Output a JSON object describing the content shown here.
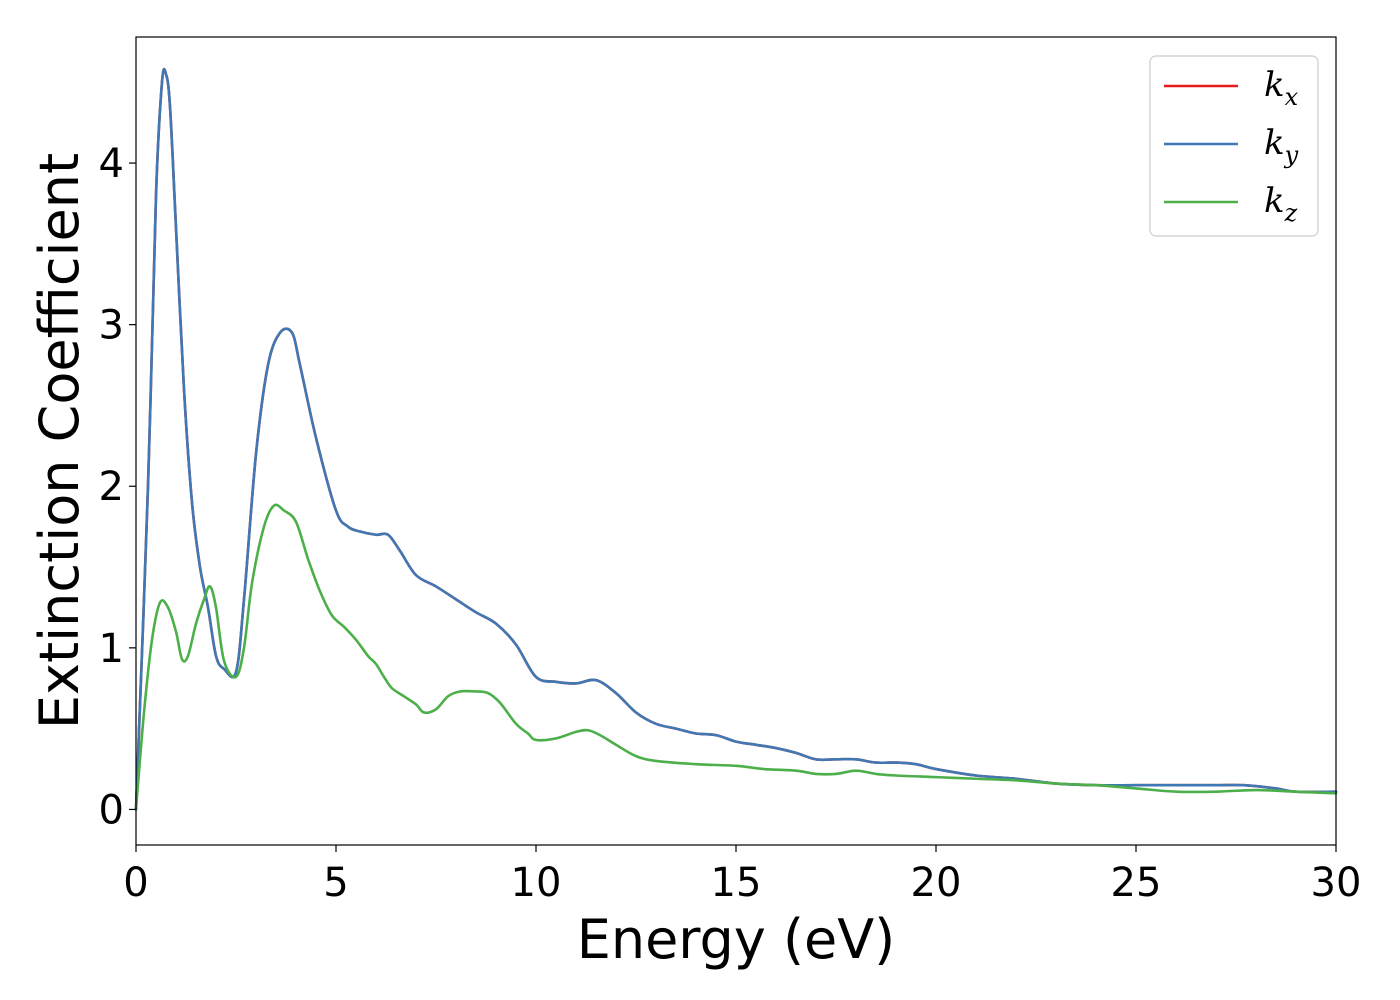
{
  "chart_data": {
    "type": "line",
    "xlabel": "Energy (eV)",
    "ylabel": "Extinction Coefficient",
    "xlim": [
      0,
      30
    ],
    "ylim": [
      -0.22,
      4.78
    ],
    "xticks": [
      0,
      5,
      10,
      15,
      20,
      25,
      30
    ],
    "yticks": [
      0,
      1,
      2,
      3,
      4
    ],
    "grid": false,
    "legend_position": "top-right",
    "series": [
      {
        "name": "k_x",
        "label_main": "k",
        "label_sub": "x",
        "color": "#e41a1c",
        "x": [
          0,
          0.3,
          0.5,
          0.65,
          0.75,
          0.85,
          1.0,
          1.2,
          1.4,
          1.6,
          1.8,
          2.0,
          2.2,
          2.5,
          2.7,
          3.0,
          3.3,
          3.6,
          3.9,
          4.1,
          4.5,
          5.0,
          5.3,
          5.6,
          6.0,
          6.3,
          6.6,
          7.0,
          7.5,
          8.0,
          8.5,
          9.0,
          9.5,
          10.0,
          10.5,
          11.0,
          11.5,
          12.0,
          12.5,
          13.0,
          13.5,
          14.0,
          14.5,
          15.0,
          15.5,
          16.0,
          16.5,
          17.0,
          17.5,
          18.0,
          18.5,
          19.0,
          19.5,
          20.0,
          21.0,
          22.0,
          23.0,
          24.0,
          25.0,
          26.0,
          27.0,
          27.7,
          28.5,
          29.0,
          30.0
        ],
        "y": [
          0.0,
          2.0,
          3.8,
          4.5,
          4.55,
          4.35,
          3.6,
          2.6,
          1.9,
          1.5,
          1.25,
          0.95,
          0.87,
          0.85,
          1.3,
          2.2,
          2.75,
          2.95,
          2.95,
          2.75,
          2.3,
          1.85,
          1.75,
          1.72,
          1.7,
          1.7,
          1.6,
          1.45,
          1.38,
          1.3,
          1.22,
          1.15,
          1.02,
          0.82,
          0.79,
          0.78,
          0.8,
          0.72,
          0.6,
          0.53,
          0.5,
          0.47,
          0.46,
          0.42,
          0.4,
          0.38,
          0.35,
          0.31,
          0.31,
          0.31,
          0.29,
          0.29,
          0.28,
          0.25,
          0.21,
          0.19,
          0.16,
          0.15,
          0.15,
          0.15,
          0.15,
          0.15,
          0.13,
          0.11,
          0.11
        ]
      },
      {
        "name": "k_y",
        "label_main": "k",
        "label_sub": "y",
        "color": "#3f78b4",
        "x": [
          0,
          0.3,
          0.5,
          0.65,
          0.75,
          0.85,
          1.0,
          1.2,
          1.4,
          1.6,
          1.8,
          2.0,
          2.2,
          2.5,
          2.7,
          3.0,
          3.3,
          3.6,
          3.9,
          4.1,
          4.5,
          5.0,
          5.3,
          5.6,
          6.0,
          6.3,
          6.6,
          7.0,
          7.5,
          8.0,
          8.5,
          9.0,
          9.5,
          10.0,
          10.5,
          11.0,
          11.5,
          12.0,
          12.5,
          13.0,
          13.5,
          14.0,
          14.5,
          15.0,
          15.5,
          16.0,
          16.5,
          17.0,
          17.5,
          18.0,
          18.5,
          19.0,
          19.5,
          20.0,
          21.0,
          22.0,
          23.0,
          24.0,
          25.0,
          26.0,
          27.0,
          27.7,
          28.5,
          29.0,
          30.0
        ],
        "y": [
          0.0,
          2.0,
          3.8,
          4.5,
          4.55,
          4.35,
          3.6,
          2.6,
          1.9,
          1.5,
          1.25,
          0.95,
          0.87,
          0.85,
          1.3,
          2.2,
          2.75,
          2.95,
          2.95,
          2.75,
          2.3,
          1.85,
          1.75,
          1.72,
          1.7,
          1.7,
          1.6,
          1.45,
          1.38,
          1.3,
          1.22,
          1.15,
          1.02,
          0.82,
          0.79,
          0.78,
          0.8,
          0.72,
          0.6,
          0.53,
          0.5,
          0.47,
          0.46,
          0.42,
          0.4,
          0.38,
          0.35,
          0.31,
          0.31,
          0.31,
          0.29,
          0.29,
          0.28,
          0.25,
          0.21,
          0.19,
          0.16,
          0.15,
          0.15,
          0.15,
          0.15,
          0.15,
          0.13,
          0.11,
          0.11
        ]
      },
      {
        "name": "k_z",
        "label_main": "k",
        "label_sub": "z",
        "color": "#4daf4a",
        "x": [
          0,
          0.2,
          0.4,
          0.6,
          0.8,
          1.0,
          1.15,
          1.3,
          1.5,
          1.7,
          1.85,
          2.0,
          2.2,
          2.5,
          2.7,
          2.9,
          3.2,
          3.45,
          3.7,
          4.0,
          4.3,
          4.6,
          4.9,
          5.2,
          5.5,
          5.8,
          6.0,
          6.2,
          6.4,
          6.7,
          7.0,
          7.2,
          7.5,
          7.8,
          8.1,
          8.5,
          8.8,
          9.1,
          9.5,
          9.8,
          10.0,
          10.5,
          11.0,
          11.3,
          11.6,
          12.0,
          12.5,
          13.0,
          14.0,
          15.0,
          15.7,
          16.5,
          17.0,
          17.5,
          18.0,
          18.5,
          19.0,
          20.0,
          21.0,
          22.0,
          23.0,
          24.0,
          25.0,
          26.0,
          27.0,
          28.0,
          29.0,
          30.0
        ],
        "y": [
          0.0,
          0.6,
          1.05,
          1.28,
          1.25,
          1.1,
          0.93,
          0.95,
          1.15,
          1.3,
          1.38,
          1.25,
          0.92,
          0.82,
          1.0,
          1.4,
          1.75,
          1.88,
          1.85,
          1.78,
          1.55,
          1.35,
          1.2,
          1.13,
          1.05,
          0.95,
          0.9,
          0.82,
          0.75,
          0.7,
          0.65,
          0.6,
          0.62,
          0.7,
          0.73,
          0.73,
          0.72,
          0.66,
          0.53,
          0.47,
          0.43,
          0.44,
          0.48,
          0.49,
          0.46,
          0.4,
          0.33,
          0.3,
          0.28,
          0.27,
          0.25,
          0.24,
          0.22,
          0.22,
          0.24,
          0.22,
          0.21,
          0.2,
          0.19,
          0.18,
          0.16,
          0.15,
          0.13,
          0.11,
          0.11,
          0.12,
          0.11,
          0.1
        ]
      }
    ]
  }
}
